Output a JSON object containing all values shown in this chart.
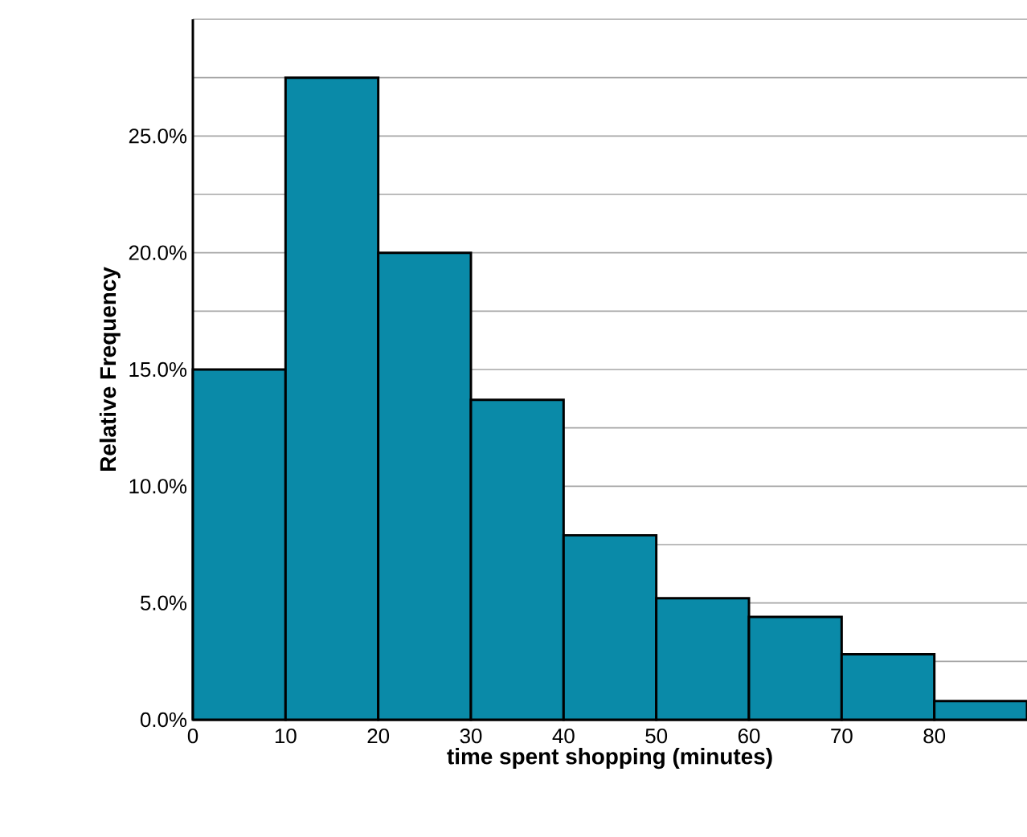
{
  "chart_data": {
    "type": "histogram",
    "xlabel": "time spent shopping (minutes)",
    "ylabel": "Relative Frequency",
    "bins": [
      0,
      10,
      20,
      30,
      40,
      50,
      60,
      70,
      80,
      90
    ],
    "values": [
      15,
      27.5,
      20,
      13.7,
      7.9,
      5.2,
      4.4,
      2.8,
      0.8
    ],
    "color": "#0a8aa8",
    "xlim": [
      0,
      90
    ],
    "xticks": [
      0,
      10,
      20,
      30,
      40,
      50,
      60,
      70,
      80
    ],
    "ylim": [
      0,
      30
    ],
    "yticks": [
      {
        "value": 0,
        "label": "0.0%"
      },
      {
        "value": 2.5,
        "label": null
      },
      {
        "value": 5,
        "label": "5.0%"
      },
      {
        "value": 7.5,
        "label": null
      },
      {
        "value": 10,
        "label": "10.0%"
      },
      {
        "value": 12.5,
        "label": null
      },
      {
        "value": 15,
        "label": "15.0%"
      },
      {
        "value": 17.5,
        "label": null
      },
      {
        "value": 20,
        "label": "20.0%"
      },
      {
        "value": 22.5,
        "label": null
      },
      {
        "value": 25,
        "label": "25.0%"
      },
      {
        "value": 27.5,
        "label": null
      },
      {
        "value": 30,
        "label": null
      }
    ],
    "grid": "y"
  }
}
